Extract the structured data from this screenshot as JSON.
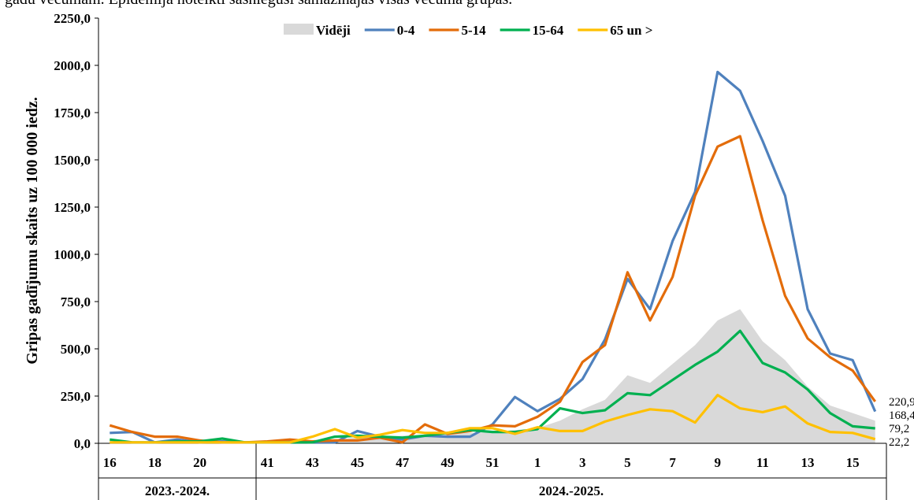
{
  "caption": "gadu vecumam. Epidēmija noteikti sasniegusi samazinājās visās vecuma grupās.",
  "colors": {
    "avg": "#d9d9d9",
    "s04": "#4f81bd",
    "s514": "#e36c0a",
    "s1564": "#00b050",
    "s65": "#ffc000"
  },
  "chart_data": {
    "type": "line",
    "title": "",
    "xlabel": "",
    "ylabel": "Gripas gadījumu skaits uz 100 000 iedz.",
    "ylim": [
      0,
      2250
    ],
    "yticks": [
      "0,0",
      "250,0",
      "500,0",
      "750,0",
      "1000,0",
      "1250,0",
      "1500,0",
      "1750,0",
      "2000,0",
      "2250,0"
    ],
    "legend_position": "top",
    "x": [
      "16",
      "17",
      "18",
      "19",
      "20",
      "21",
      "22",
      "41",
      "42",
      "43",
      "44",
      "45",
      "46",
      "47",
      "48",
      "49",
      "50",
      "51",
      "52",
      "1",
      "2",
      "3",
      "4",
      "5",
      "6",
      "7",
      "8",
      "9",
      "10",
      "11",
      "12",
      "13",
      "14",
      "15",
      "16"
    ],
    "x_tick_labels": [
      "16",
      "",
      "18",
      "",
      "20",
      "",
      "",
      "41",
      "",
      "43",
      "",
      "45",
      "",
      "47",
      "",
      "49",
      "",
      "51",
      "",
      "1",
      "",
      "3",
      "",
      "5",
      "",
      "7",
      "",
      "9",
      "",
      "11",
      "",
      "13",
      "",
      "15",
      ""
    ],
    "seasons": [
      {
        "label": "2023.-2024.",
        "start": 0,
        "count": 7
      },
      {
        "label": "2024.-2025.",
        "start": 7,
        "count": 28
      }
    ],
    "series": [
      {
        "name": "Vidēji",
        "key": "avg",
        "kind": "area",
        "values": [
          15,
          10,
          8,
          8,
          8,
          8,
          8,
          8,
          10,
          15,
          20,
          30,
          35,
          40,
          45,
          50,
          55,
          60,
          70,
          80,
          120,
          180,
          230,
          360,
          320,
          420,
          520,
          650,
          710,
          540,
          440,
          300,
          200,
          160,
          120
        ]
      },
      {
        "name": "0-4",
        "key": "s04",
        "kind": "line",
        "values": [
          55,
          60,
          5,
          20,
          5,
          10,
          5,
          5,
          10,
          5,
          5,
          65,
          35,
          20,
          40,
          35,
          35,
          100,
          245,
          170,
          235,
          340,
          550,
          870,
          710,
          1070,
          1330,
          1965,
          1865,
          1600,
          1310,
          710,
          475,
          440,
          168.4
        ]
      },
      {
        "name": "5-14",
        "key": "s514",
        "kind": "line",
        "values": [
          95,
          60,
          35,
          35,
          15,
          5,
          5,
          10,
          20,
          10,
          15,
          15,
          30,
          5,
          100,
          50,
          65,
          95,
          90,
          140,
          220,
          430,
          520,
          905,
          650,
          880,
          1310,
          1570,
          1625,
          1180,
          780,
          555,
          455,
          385,
          220.9
        ]
      },
      {
        "name": "15-64",
        "key": "s1564",
        "kind": "line",
        "values": [
          20,
          5,
          5,
          10,
          10,
          25,
          5,
          5,
          5,
          5,
          35,
          40,
          35,
          30,
          40,
          55,
          70,
          60,
          60,
          75,
          185,
          160,
          175,
          265,
          255,
          335,
          415,
          485,
          595,
          425,
          375,
          285,
          160,
          90,
          79.2
        ]
      },
      {
        "name": "65 un >",
        "key": "s65",
        "kind": "line",
        "values": [
          5,
          5,
          5,
          5,
          5,
          5,
          5,
          5,
          5,
          35,
          75,
          30,
          45,
          70,
          55,
          55,
          80,
          80,
          50,
          85,
          65,
          65,
          115,
          150,
          180,
          170,
          110,
          255,
          185,
          165,
          195,
          105,
          60,
          55,
          22.2
        ]
      }
    ],
    "end_labels": [
      "220,9",
      "168,4",
      "79,2",
      "22,2"
    ]
  }
}
